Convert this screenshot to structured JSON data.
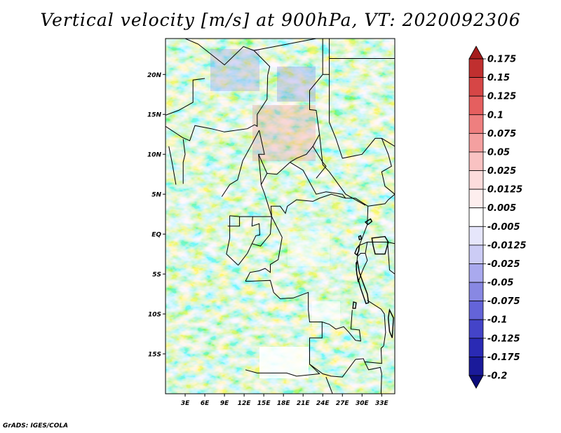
{
  "title": "Vertical velocity [m/s] at 900hPa, VT: 2020092306",
  "credit": "GrADS: IGES/COLA",
  "map": {
    "region": "Central Africa",
    "lon_range": [
      0,
      35
    ],
    "lat_range": [
      -20,
      24.5
    ],
    "lat_labels": [
      "20N",
      "15N",
      "10N",
      "5N",
      "EQ",
      "5S",
      "10S",
      "15S"
    ],
    "lat_values": [
      20,
      15,
      10,
      5,
      0,
      -5,
      -10,
      -15
    ],
    "lon_labels": [
      "3E",
      "6E",
      "9E",
      "12E",
      "15E",
      "18E",
      "21E",
      "24E",
      "27E",
      "30E",
      "33E"
    ],
    "lon_values": [
      3,
      6,
      9,
      12,
      15,
      18,
      21,
      24,
      27,
      30,
      33
    ]
  },
  "colorbar": {
    "labels": [
      "0.175",
      "0.15",
      "0.125",
      "0.1",
      "0.075",
      "0.05",
      "0.025",
      "0.0125",
      "0.005",
      "-0.005",
      "-0.0125",
      "-0.025",
      "-0.05",
      "-0.075",
      "-0.1",
      "-0.125",
      "-0.175",
      "-0.2"
    ],
    "colors": [
      "#a51c1c",
      "#c02f2f",
      "#d64646",
      "#e55f5f",
      "#ee7f7f",
      "#f4a0a0",
      "#f9c2c2",
      "#fcdcdc",
      "#fdeeee",
      "#ffffff",
      "#e6e6fb",
      "#ccccf5",
      "#a9a9ee",
      "#8888e3",
      "#6464d8",
      "#4444c8",
      "#2a2ab4",
      "#1a1a9a",
      "#0c0c7a"
    ]
  }
}
